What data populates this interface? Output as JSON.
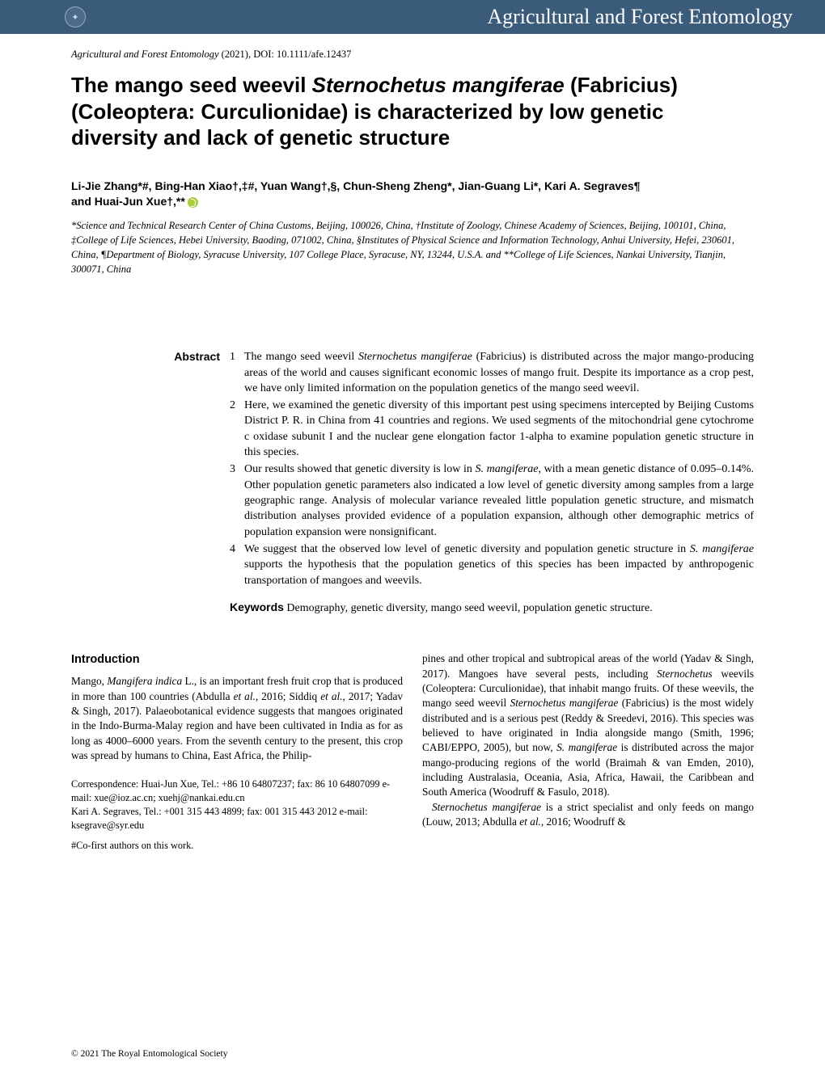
{
  "journal_bar": {
    "title": "Agricultural and Forest Entomology",
    "bar_color": "#3a5c7a",
    "text_color": "#ffffff"
  },
  "citation": {
    "journal": "Agricultural and Forest Entomology",
    "year_doi": " (2021), DOI: 10.1111/afe.12437"
  },
  "title": {
    "pre": "The mango seed weevil ",
    "species": "Sternochetus mangiferae",
    "post": " (Fabricius) (Coleoptera: Curculionidae) is characterized by low genetic diversity and lack of genetic structure"
  },
  "authors_line1": "Li-Jie Zhang*#, Bing-Han Xiao†,‡#, Yuan Wang†,§, Chun-Sheng Zheng*, Jian-Guang Li*, Kari A. Segraves¶",
  "authors_line2": "and Huai-Jun Xue†,**",
  "affiliations": "*Science and Technical Research Center of China Customs, Beijing, 100026, China, †Institute of Zoology, Chinese Academy of Sciences, Beijing, 100101, China, ‡College of Life Sciences, Hebei University, Baoding, 071002, China, §Institutes of Physical Science and Information Technology, Anhui University, Hefei, 230601, China, ¶Department of Biology, Syracuse University, 107 College Place, Syracuse, NY, 13244, U.S.A. and **College of Life Sciences, Nankai University, Tianjin, 300071, China",
  "abstract_label": "Abstract",
  "abstract_items": [
    {
      "n": "1",
      "pre": "The mango seed weevil ",
      "it": "Sternochetus mangiferae",
      "post": " (Fabricius) is distributed across the major mango-producing areas of the world and causes significant economic losses of mango fruit. Despite its importance as a crop pest, we have only limited information on the population genetics of the mango seed weevil."
    },
    {
      "n": "2",
      "pre": "Here, we examined the genetic diversity of this important pest using specimens intercepted by Beijing Customs District P. R. in China from 41 countries and regions. We used segments of the mitochondrial gene cytochrome c oxidase subunit I and the nuclear gene elongation factor 1-alpha to examine population genetic structure in this species.",
      "it": "",
      "post": ""
    },
    {
      "n": "3",
      "pre": "Our results showed that genetic diversity is low in ",
      "it": "S. mangiferae",
      "post": ", with a mean genetic distance of 0.095–0.14%. Other population genetic parameters also indicated a low level of genetic diversity among samples from a large geographic range. Analysis of molecular variance revealed little population genetic structure, and mismatch distribution analyses provided evidence of a population expansion, although other demographic metrics of population expansion were nonsignificant."
    },
    {
      "n": "4",
      "pre": "We suggest that the observed low level of genetic diversity and population genetic structure in ",
      "it": "S. mangiferae",
      "post": " supports the hypothesis that the population genetics of this species has been impacted by anthropogenic transportation of mangoes and weevils."
    }
  ],
  "keywords_label": "Keywords",
  "keywords_text": " Demography, genetic diversity, mango seed weevil, population genetic structure.",
  "intro_heading": "Introduction",
  "col_left_p1_pre": "Mango, ",
  "col_left_p1_it": "Mangifera indica",
  "col_left_p1_post": " L., is an important fresh fruit crop that is produced in more than 100 countries (Abdulla ",
  "col_left_p1_it2": "et al.",
  "col_left_p1_post2": ", 2016; Siddiq ",
  "col_left_p1_it3": "et al.",
  "col_left_p1_post3": ", 2017; Yadav & Singh, 2017). Palaeobotanical evidence suggests that mangoes originated in the Indo-Burma-Malay region and have been cultivated in India as for as long as 4000–6000 years. From the seventh century to the present, this crop was spread by humans to China, East Africa, the Philip-",
  "correspondence_l1": "Correspondence:   Huai-Jun Xue, Tel.: +86 10 64807237; fax: 86 10 64807099 e-mail: xue@ioz.ac.cn; xuehj@nankai.edu.cn",
  "correspondence_l2": "Kari A. Segraves, Tel.: +001 315 443 4899; fax: 001 315 443 2012 e-mail: ksegrave@syr.edu",
  "cofirst": "#Co-first authors on this work.",
  "col_right_p1a": "pines and other tropical and subtropical areas of the world (Yadav & Singh, 2017). Mangoes have several pests, including ",
  "col_right_p1_it1": "Sternochetus",
  "col_right_p1b": " weevils (Coleoptera: Curculionidae), that inhabit mango fruits. Of these weevils, the mango seed weevil ",
  "col_right_p1_it2": "Sternochetus mangiferae",
  "col_right_p1c": " (Fabricius) is the most widely distributed and is a serious pest (Reddy & Sreedevi, 2016). This species was believed to have originated in India alongside mango (Smith, 1996; CABI/EPPO, 2005), but now, ",
  "col_right_p1_it3": "S. mangiferae",
  "col_right_p1d": " is distributed across the major mango-producing regions of the world (Braimah & van Emden, 2010), including Australasia, Oceania, Asia, Africa, Hawaii, the Caribbean and South America (Woodruff & Fasulo, 2018).",
  "col_right_p2_it1": "Sternochetus mangiferae",
  "col_right_p2a": " is a strict specialist and only feeds on mango (Louw, 2013; Abdulla ",
  "col_right_p2_it2": "et al.",
  "col_right_p2b": ", 2016; Woodruff &",
  "footer": "© 2021 The Royal Entomological Society"
}
